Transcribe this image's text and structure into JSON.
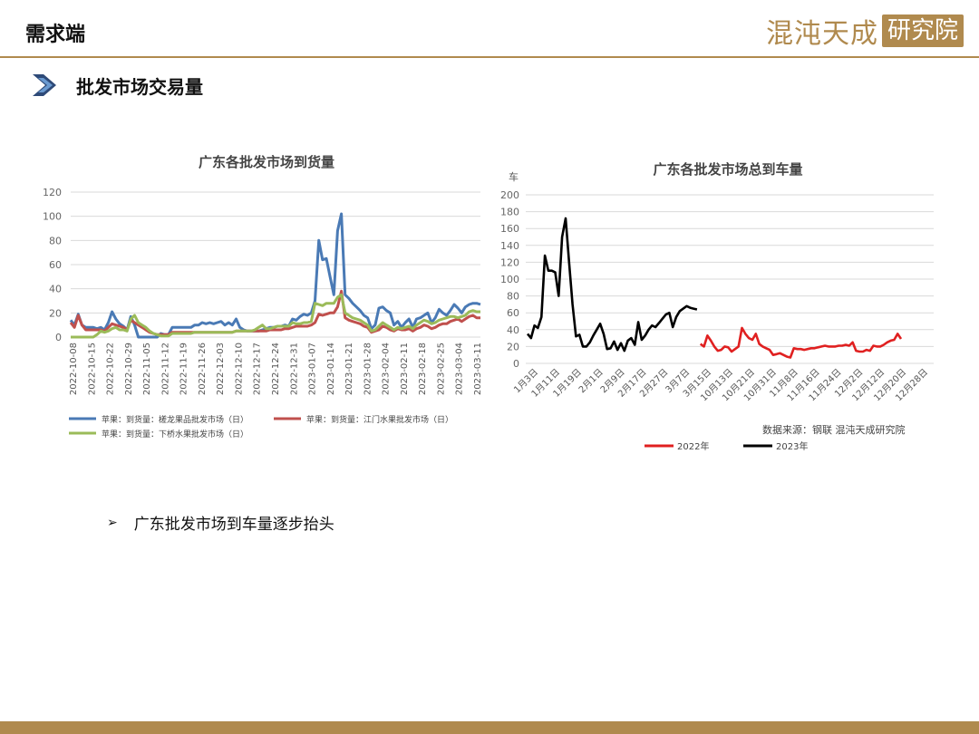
{
  "header": {
    "title": "需求端",
    "brand_text": "混沌天成",
    "brand_box": "研究院"
  },
  "section": {
    "title": "批发市场交易量"
  },
  "bullet": {
    "text": "广东批发市场到车量逐步抬头"
  },
  "colors": {
    "gold": "#b08a4e",
    "blue": "#4a7ab5",
    "red": "#c0504d",
    "green": "#9bbb59",
    "red2022": "#e02020",
    "black2023": "#000000"
  },
  "chart_data": [
    {
      "type": "line",
      "title": "广东各批发市场到货量",
      "ylim": [
        0,
        120
      ],
      "yticks": [
        0,
        20,
        40,
        60,
        80,
        100,
        120
      ],
      "x_labels": [
        "2022-10-08",
        "2022-10-15",
        "2022-10-22",
        "2022-10-29",
        "2022-11-05",
        "2022-11-12",
        "2022-11-19",
        "2022-11-26",
        "2022-12-03",
        "2022-12-10",
        "2022-12-17",
        "2022-12-24",
        "2022-12-31",
        "2023-01-07",
        "2023-01-14",
        "2023-01-21",
        "2023-01-28",
        "2023-02-04",
        "2023-02-11",
        "2023-02-18",
        "2023-02-25",
        "2023-03-04",
        "2023-03-11"
      ],
      "legend": [
        {
          "name": "苹果：到货量：槎龙果品批发市场（日）",
          "color": "#4a7ab5"
        },
        {
          "name": "苹果：到货量：江门水果批发市场（日）",
          "color": "#c0504d"
        },
        {
          "name": "苹果：到货量：下桥水果批发市场（日）",
          "color": "#9bbb59"
        }
      ],
      "series": [
        {
          "color": "#4a7ab5",
          "values": [
            14,
            10,
            19,
            10,
            8,
            8,
            8,
            7,
            8,
            6,
            12,
            21,
            15,
            11,
            9,
            6,
            17,
            10,
            0,
            0,
            0,
            0,
            0,
            0,
            3,
            2,
            2,
            8,
            8,
            8,
            8,
            8,
            8,
            10,
            10,
            12,
            11,
            12,
            11,
            12,
            13,
            10,
            12,
            10,
            15,
            8,
            6,
            5,
            5,
            5,
            5,
            6,
            7,
            8,
            8,
            9,
            9,
            10,
            9,
            15,
            14,
            17,
            19,
            18,
            20,
            30,
            80,
            64,
            65,
            50,
            35,
            88,
            102,
            35,
            32,
            28,
            25,
            22,
            18,
            16,
            7,
            10,
            24,
            25,
            22,
            20,
            10,
            13,
            8,
            12,
            15,
            8,
            15,
            16,
            18,
            20,
            12,
            16,
            23,
            20,
            18,
            22,
            27,
            24,
            20,
            25,
            27,
            28,
            28,
            27
          ]
        },
        {
          "color": "#c0504d",
          "values": [
            12,
            8,
            18,
            10,
            6,
            6,
            6,
            6,
            6,
            5,
            8,
            11,
            10,
            9,
            8,
            6,
            14,
            12,
            10,
            8,
            6,
            4,
            3,
            2,
            2,
            2,
            2,
            4,
            4,
            4,
            4,
            4,
            4,
            4,
            4,
            4,
            4,
            4,
            4,
            4,
            4,
            4,
            4,
            4,
            5,
            5,
            5,
            5,
            5,
            5,
            5,
            5,
            5,
            6,
            6,
            6,
            6,
            7,
            7,
            8,
            9,
            9,
            9,
            9,
            10,
            12,
            19,
            18,
            19,
            20,
            20,
            25,
            38,
            16,
            14,
            13,
            12,
            11,
            9,
            8,
            4,
            5,
            6,
            9,
            8,
            6,
            5,
            7,
            6,
            6,
            7,
            5,
            7,
            8,
            10,
            9,
            7,
            8,
            10,
            11,
            11,
            13,
            14,
            15,
            13,
            15,
            17,
            18,
            16,
            16
          ]
        },
        {
          "color": "#9bbb59",
          "values": [
            0,
            0,
            0,
            0,
            0,
            0,
            0,
            2,
            5,
            4,
            5,
            7,
            8,
            6,
            6,
            5,
            15,
            18,
            12,
            10,
            8,
            5,
            3,
            2,
            1,
            1,
            1,
            3,
            3,
            3,
            3,
            3,
            3,
            4,
            4,
            4,
            4,
            4,
            4,
            4,
            4,
            4,
            4,
            4,
            5,
            5,
            5,
            5,
            5,
            6,
            8,
            10,
            7,
            7,
            8,
            9,
            9,
            9,
            9,
            12,
            11,
            11,
            12,
            12,
            13,
            28,
            27,
            26,
            28,
            28,
            28,
            33,
            35,
            20,
            18,
            16,
            15,
            14,
            12,
            10,
            5,
            6,
            9,
            12,
            10,
            8,
            6,
            8,
            7,
            8,
            9,
            7,
            10,
            12,
            14,
            13,
            11,
            12,
            14,
            15,
            16,
            17,
            17,
            16,
            17,
            18,
            21,
            22,
            21,
            21
          ]
        }
      ]
    },
    {
      "type": "line",
      "title": "广东各批发市场总到车量",
      "ylabel": "车",
      "ylim": [
        0,
        200
      ],
      "yticks": [
        0,
        20,
        40,
        60,
        80,
        100,
        120,
        140,
        160,
        180,
        200
      ],
      "x_labels": [
        "1月3日",
        "1月11日",
        "1月19日",
        "2月1日",
        "2月9日",
        "2月17日",
        "2月27日",
        "3月7日",
        "3月15日",
        "10月13日",
        "10月21日",
        "10月31日",
        "11月8日",
        "11月16日",
        "11月24日",
        "12月2日",
        "12月12日",
        "12月20日",
        "12月28日"
      ],
      "source": "数据来源：钢联 混沌天成研究院",
      "legend": [
        {
          "name": "2022年",
          "color": "#e02020"
        },
        {
          "name": "2023年",
          "color": "#000000"
        }
      ],
      "series": [
        {
          "name": "2023年",
          "color": "#000000",
          "start_index": 0,
          "values": [
            35,
            30,
            45,
            42,
            55,
            128,
            110,
            110,
            108,
            80,
            150,
            172,
            120,
            70,
            32,
            34,
            20,
            20,
            25,
            33,
            40,
            47,
            35,
            17,
            18,
            26,
            16,
            24,
            15,
            27,
            30,
            22,
            49,
            28,
            33,
            40,
            45,
            43,
            48,
            53,
            58,
            60,
            43,
            55,
            62,
            65,
            68,
            66,
            65,
            64
          ]
        },
        {
          "name": "2022年",
          "color": "#e02020",
          "start_index": 50,
          "values": [
            23,
            20,
            33,
            27,
            20,
            15,
            16,
            20,
            19,
            14,
            17,
            20,
            42,
            35,
            30,
            28,
            35,
            23,
            20,
            18,
            16,
            10,
            11,
            12,
            10,
            8,
            7,
            18,
            17,
            17,
            16,
            17,
            18,
            18,
            19,
            20,
            21,
            20,
            20,
            20,
            21,
            21,
            22,
            21,
            25,
            15,
            14,
            14,
            16,
            15,
            21,
            20,
            20,
            22,
            25,
            27,
            28,
            35,
            29
          ]
        }
      ]
    }
  ]
}
